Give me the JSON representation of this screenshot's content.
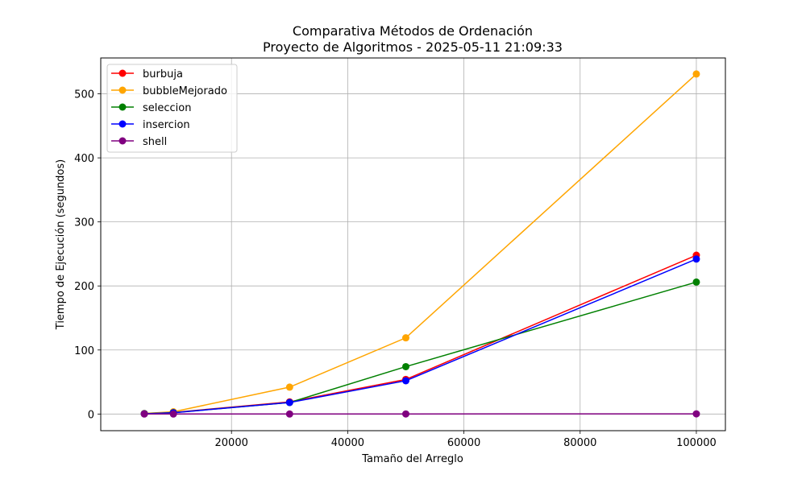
{
  "chart_data": {
    "type": "line",
    "title_line1": "Comparativa Métodos de Ordenación",
    "title_line2": "Proyecto de Algoritmos - 2025-05-11 21:09:33",
    "xlabel": "Tamaño del Arreglo",
    "ylabel": "Tiempo de Ejecución (segundos)",
    "x": [
      5000,
      10000,
      30000,
      50000,
      100000
    ],
    "xlim": [
      -2500,
      105000
    ],
    "ylim": [
      -26,
      556
    ],
    "xticks": [
      20000,
      40000,
      60000,
      80000,
      100000
    ],
    "yticks": [
      0,
      100,
      200,
      300,
      400,
      500
    ],
    "grid": true,
    "legend_position": "upper-left",
    "series": [
      {
        "name": "burbuja",
        "color": "#ff0000",
        "values": [
          0.6,
          2.5,
          19,
          54,
          248
        ]
      },
      {
        "name": "bubbleMejorado",
        "color": "#ffa500",
        "values": [
          0.8,
          3.5,
          42,
          119,
          531
        ]
      },
      {
        "name": "seleccion",
        "color": "#008000",
        "values": [
          0.5,
          2.2,
          18,
          74,
          206
        ]
      },
      {
        "name": "insercion",
        "color": "#0000ff",
        "values": [
          0.4,
          2.0,
          18,
          52,
          242
        ]
      },
      {
        "name": "shell",
        "color": "#800080",
        "values": [
          0.01,
          0.02,
          0.05,
          0.1,
          0.3
        ]
      }
    ]
  }
}
